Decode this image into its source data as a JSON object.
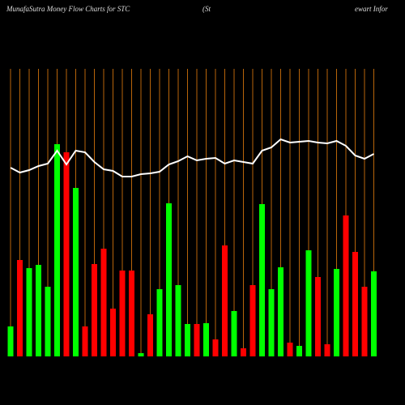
{
  "chart_data": {
    "type": "bar-line",
    "title_parts": [
      "MunafaSutra  Money Flow  Charts for STC",
      "(St",
      "ewart Infor"
    ],
    "categories": [
      null,
      null,
      null,
      null,
      null,
      null,
      null,
      null,
      null,
      null,
      null,
      null,
      null,
      null,
      null,
      null,
      null,
      null,
      null,
      null,
      null,
      null,
      null,
      null,
      null,
      null,
      null,
      null,
      null,
      null,
      null,
      null,
      null,
      null,
      null,
      null,
      null,
      null,
      null,
      null
    ],
    "ylim": [
      0,
      360
    ],
    "bars": {
      "values": [
        37,
        119,
        109,
        113,
        86,
        262,
        252,
        208,
        37,
        114,
        133,
        59,
        106,
        106,
        4,
        52,
        83,
        189,
        88,
        40,
        40,
        41,
        21,
        137,
        56,
        10,
        88,
        188,
        83,
        110,
        17,
        13,
        131,
        98,
        15,
        108,
        174,
        129,
        86,
        105
      ],
      "colors": [
        "#00ff00",
        "#ff0000",
        "#00ff00",
        "#00ff00",
        "#00ff00",
        "#00ff00",
        "#ff0000",
        "#00ff00",
        "#ff0000",
        "#ff0000",
        "#ff0000",
        "#ff0000",
        "#ff0000",
        "#ff0000",
        "#00ff00",
        "#ff0000",
        "#00ff00",
        "#00ff00",
        "#00ff00",
        "#00ff00",
        "#ff0000",
        "#00ff00",
        "#ff0000",
        "#ff0000",
        "#00ff00",
        "#ff0000",
        "#ff0000",
        "#00ff00",
        "#00ff00",
        "#00ff00",
        "#ff0000",
        "#00ff00",
        "#00ff00",
        "#ff0000",
        "#ff0000",
        "#00ff00",
        "#ff0000",
        "#ff0000",
        "#ff0000",
        "#00ff00"
      ]
    },
    "line": {
      "color": "#ffffff",
      "values": [
        233,
        227,
        230,
        235,
        238,
        254,
        237,
        254,
        252,
        240,
        231,
        229,
        222,
        222,
        225,
        226,
        228,
        237,
        241,
        247,
        242,
        244,
        245,
        238,
        242,
        240,
        238,
        254,
        258,
        268,
        264,
        265,
        266,
        264,
        263,
        266,
        260,
        248,
        244,
        250
      ]
    },
    "gridline_color": "#b8650a"
  }
}
